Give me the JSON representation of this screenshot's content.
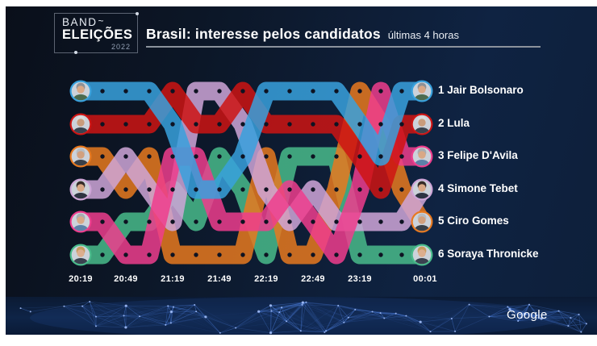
{
  "header": {
    "logo": {
      "band": "BAND",
      "tilde": "~",
      "eleicoes": "ELEIÇÕES",
      "year": "2022"
    },
    "title": "Brasil: interesse pelos candidatos",
    "subtitle": "últimas 4 horas"
  },
  "chart_data": {
    "type": "bump",
    "description": "Ranking of Google search interest for presidential candidates over the last 4 hours; rank 1 at top, rank 6 at bottom; 16 sample columns, avatars mark first and last samples",
    "rank_range": [
      1,
      6
    ],
    "n_points": 16,
    "x_tick_labels": [
      "20:19",
      "20:49",
      "21:19",
      "21:49",
      "22:19",
      "22:49",
      "23:19",
      "00:01"
    ],
    "x_tick_point_indices": [
      0,
      2,
      4,
      6,
      8,
      10,
      12,
      15
    ],
    "dot_color": "#0e1322",
    "series": [
      {
        "name": "Jair Bolsonaro",
        "label": "1 Jair Bolsonaro",
        "final_rank": 1,
        "color": "#38A1DD",
        "ranks": [
          1,
          1,
          1,
          1,
          2,
          4,
          4,
          3,
          1,
          1,
          1,
          1,
          2,
          3,
          1,
          1
        ],
        "avatar": {
          "hair": "#8d9196",
          "skin": "#d9a886",
          "shirt": "#4b6b4f"
        }
      },
      {
        "name": "Lula",
        "label": "2 Lula",
        "final_rank": 2,
        "color": "#CE1413",
        "ranks": [
          2,
          2,
          2,
          2,
          1,
          2,
          2,
          1,
          2,
          2,
          2,
          2,
          3,
          4,
          2,
          2
        ],
        "avatar": {
          "hair": "#d9dadb",
          "skin": "#c99c7c",
          "shirt": "#39434f"
        }
      },
      {
        "name": "Felipe D'Avila",
        "label": "3 Felipe D'Avila",
        "final_rank": 3,
        "color": "#EE3D8D",
        "ranks": [
          5,
          5,
          6,
          6,
          3,
          3,
          5,
          5,
          5,
          4,
          5,
          6,
          4,
          1,
          3,
          3
        ],
        "avatar": {
          "hair": "#a7acb2",
          "skin": "#d9a886",
          "shirt": "#5d81a8"
        }
      },
      {
        "name": "Simone Tebet",
        "label": "4 Simone Tebet",
        "final_rank": 4,
        "color": "#CFA6D8",
        "ranks": [
          4,
          4,
          3,
          4,
          5,
          1,
          1,
          2,
          4,
          5,
          4,
          5,
          5,
          5,
          5,
          4
        ],
        "avatar": {
          "hair": "#352b28",
          "skin": "#d9a886",
          "shirt": "#2e3442"
        }
      },
      {
        "name": "Ciro Gomes",
        "label": "5 Ciro Gomes",
        "final_rank": 5,
        "color": "#E8791F",
        "ranks": [
          3,
          3,
          4,
          3,
          6,
          6,
          6,
          6,
          3,
          6,
          6,
          4,
          1,
          2,
          4,
          5
        ],
        "avatar": {
          "hair": "#b7bcc2",
          "skin": "#d2a07e",
          "shirt": "#394049"
        }
      },
      {
        "name": "Soraya Thronicke",
        "label": "6 Soraya Thronicke",
        "final_rank": 6,
        "color": "#49BB8B",
        "ranks": [
          6,
          6,
          5,
          5,
          4,
          5,
          3,
          4,
          6,
          3,
          3,
          3,
          6,
          6,
          6,
          6
        ],
        "avatar": {
          "hair": "#c79a5d",
          "skin": "#dcae8e",
          "shirt": "#3a4250"
        }
      }
    ]
  },
  "attribution": {
    "logo": "Google"
  }
}
